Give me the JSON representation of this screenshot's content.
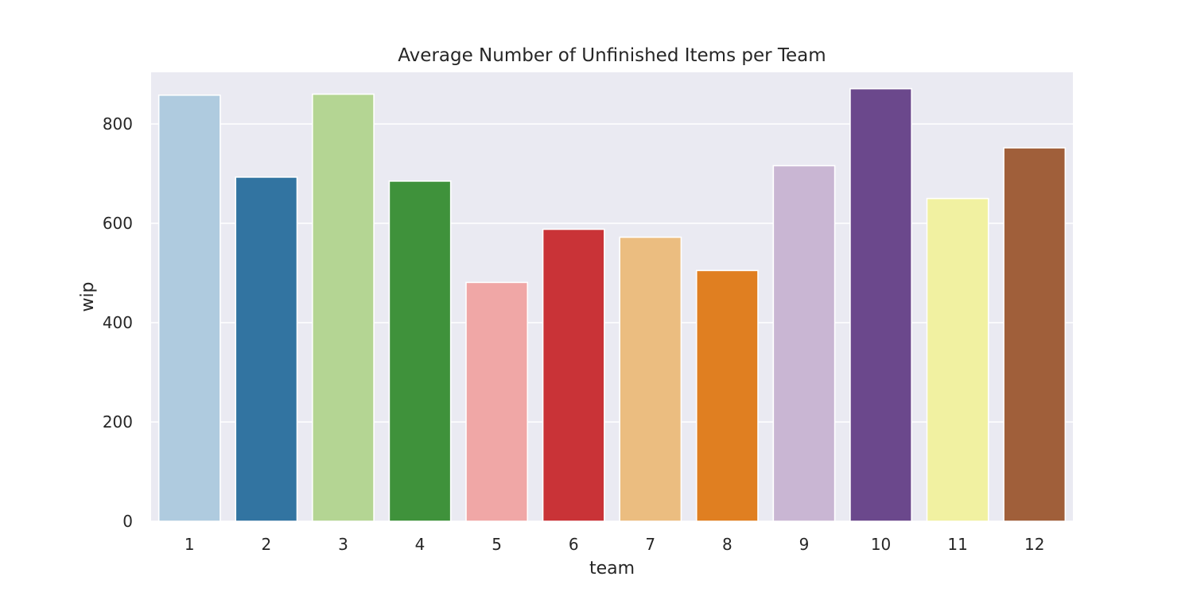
{
  "chart_data": {
    "type": "bar",
    "title": "Average Number of Unfinished Items per Team",
    "xlabel": "team",
    "ylabel": "wip",
    "categories": [
      "1",
      "2",
      "3",
      "4",
      "5",
      "6",
      "7",
      "8",
      "9",
      "10",
      "11",
      "12"
    ],
    "values": [
      858,
      693,
      860,
      685,
      481,
      588,
      572,
      505,
      716,
      871,
      650,
      752
    ],
    "colors": [
      "#afcbdf",
      "#3274a1",
      "#b4d593",
      "#3f923b",
      "#f0a7a6",
      "#c93337",
      "#ebbd80",
      "#e07f21",
      "#c9b6d3",
      "#6b488c",
      "#f1f1a1",
      "#a05f3a"
    ],
    "yticks": [
      0,
      200,
      400,
      600,
      800
    ],
    "ylim": [
      0,
      904
    ],
    "grid": true,
    "background": "#eaeaf2",
    "legend": "none"
  }
}
